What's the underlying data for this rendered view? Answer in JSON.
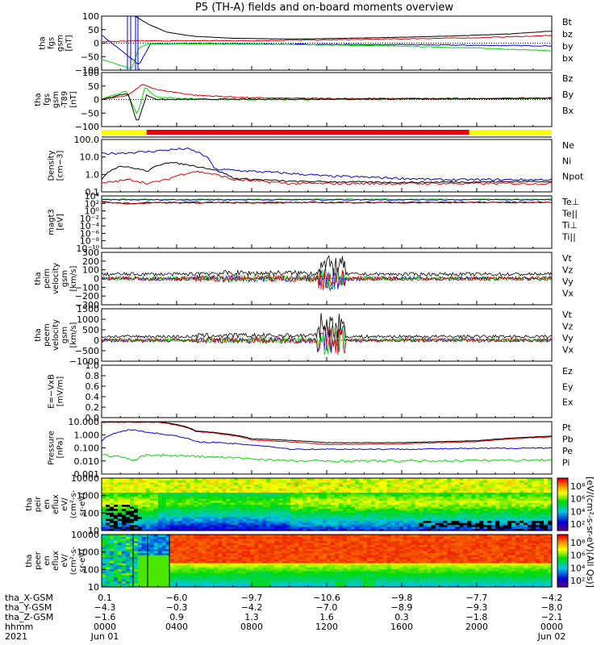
{
  "title": "P5 (TH-A) fields and on-board moments overview",
  "colors": {
    "black": "#000000",
    "red": "#dd0000",
    "green": "#00dd00",
    "blue": "#0000dd",
    "yellow": "#ffff00",
    "bar_red": "#ee0000"
  },
  "chart_data": [
    {
      "id": "p1",
      "type": "line",
      "ylabel": [
        "tha",
        "fgs",
        "gsm",
        "[nT]"
      ],
      "yticks": [
        "100",
        "50",
        "0",
        "−50",
        "−100"
      ],
      "ylim": [
        -100,
        100
      ],
      "legend": [
        {
          "name": "Bt",
          "color": "black"
        },
        {
          "name": "bz",
          "color": "red"
        },
        {
          "name": "by",
          "color": "green"
        },
        {
          "name": "bx",
          "color": "blue"
        }
      ],
      "series": {
        "Bt": [
          [
            0.0,
            220
          ],
          [
            1.9,
            95
          ],
          [
            2.5,
            70
          ],
          [
            3.5,
            40
          ],
          [
            5,
            25
          ],
          [
            7,
            18
          ],
          [
            10,
            15
          ],
          [
            13,
            18
          ],
          [
            16,
            22
          ],
          [
            19,
            27
          ],
          [
            22,
            35
          ],
          [
            24,
            45
          ]
        ],
        "bz": [
          [
            0.0,
            5
          ],
          [
            2,
            8
          ],
          [
            5,
            9
          ],
          [
            8,
            9
          ],
          [
            12,
            12
          ],
          [
            16,
            16
          ],
          [
            20,
            20
          ],
          [
            24,
            28
          ]
        ],
        "by": [
          [
            0.0,
            -60
          ],
          [
            1.6,
            -95
          ],
          [
            2.0,
            -15
          ],
          [
            2.5,
            -3
          ],
          [
            5,
            -3
          ],
          [
            10,
            -5
          ],
          [
            15,
            -10
          ],
          [
            20,
            -18
          ],
          [
            24,
            -28
          ]
        ],
        "bx": [
          [
            0.0,
            30
          ],
          [
            2.0,
            -80
          ],
          [
            2.6,
            -3
          ],
          [
            5,
            -1
          ],
          [
            10,
            -4
          ],
          [
            16,
            -6
          ],
          [
            24,
            -10
          ]
        ]
      }
    },
    {
      "id": "p2",
      "type": "line",
      "ylabel": [
        "tha",
        "fgs",
        "gsm",
        "-T89",
        "[nT]"
      ],
      "yticks": [
        "100",
        "50",
        "0",
        "−50",
        "−100"
      ],
      "ylim": [
        -125,
        125
      ],
      "legend": [
        {
          "name": "Bz",
          "color": "red"
        },
        {
          "name": "By",
          "color": "green"
        },
        {
          "name": "Bx",
          "color": "blue"
        }
      ],
      "series": {
        "red": [
          [
            0,
            0
          ],
          [
            1.4,
            20
          ],
          [
            2.2,
            70
          ],
          [
            3,
            45
          ],
          [
            5,
            20
          ],
          [
            8,
            8
          ],
          [
            12,
            5
          ],
          [
            16,
            5
          ],
          [
            20,
            5
          ],
          [
            24,
            8
          ]
        ],
        "green": [
          [
            0,
            0
          ],
          [
            1.3,
            40
          ],
          [
            1.9,
            -70
          ],
          [
            2.3,
            55
          ],
          [
            3,
            10
          ],
          [
            6,
            0
          ],
          [
            12,
            0
          ],
          [
            24,
            5
          ]
        ],
        "black": [
          [
            0,
            0
          ],
          [
            1.4,
            30
          ],
          [
            1.9,
            -110
          ],
          [
            2.4,
            20
          ],
          [
            3,
            0
          ],
          [
            8,
            2
          ],
          [
            16,
            3
          ],
          [
            24,
            5
          ]
        ]
      }
    },
    {
      "id": "bar",
      "type": "bar",
      "segments": [
        [
          0,
          2.4,
          "yellow"
        ],
        [
          2.4,
          19.6,
          "bar_red"
        ],
        [
          19.6,
          24,
          "yellow"
        ]
      ]
    },
    {
      "id": "p3",
      "type": "line",
      "ylabel": [
        "Density",
        "[cm−3]"
      ],
      "yticks": [
        "100.0",
        "10.0",
        "1.0",
        "0.1"
      ],
      "ylim": [
        0.1,
        100
      ],
      "log": true,
      "legend": [
        {
          "name": "Ne",
          "color": "red"
        },
        {
          "name": "Ni",
          "color": "black"
        },
        {
          "name": "Npot",
          "color": "blue"
        }
      ],
      "series": {
        "Ne": [
          [
            0,
            0.3
          ],
          [
            1.5,
            0.5
          ],
          [
            2.5,
            0.3
          ],
          [
            3.5,
            0.5
          ],
          [
            5,
            1.5
          ],
          [
            7,
            0.5
          ],
          [
            10,
            0.3
          ],
          [
            16,
            0.3
          ],
          [
            24,
            0.3
          ]
        ],
        "Ni": [
          [
            0,
            0.5
          ],
          [
            1.0,
            3
          ],
          [
            2.5,
            1.5
          ],
          [
            3.5,
            5
          ],
          [
            5,
            3
          ],
          [
            7,
            0.6
          ],
          [
            10,
            0.4
          ],
          [
            16,
            0.35
          ],
          [
            24,
            0.4
          ]
        ],
        "Npot": [
          [
            0,
            15
          ],
          [
            2.5,
            20
          ],
          [
            4.5,
            30
          ],
          [
            6,
            2
          ],
          [
            8,
            1.5
          ],
          [
            12,
            0.8
          ],
          [
            18,
            0.5
          ],
          [
            24,
            0.5
          ]
        ]
      }
    },
    {
      "id": "p4",
      "type": "line",
      "ylabel": [
        "magt3",
        "[eV]"
      ],
      "yticks": [
        "10⁴",
        "10²",
        "10⁰",
        "10⁻²",
        "10⁻⁴",
        "10⁻⁶",
        "10⁻⁸",
        "10⁻¹⁰"
      ],
      "ylim": [
        -10.5,
        4.5
      ],
      "log": true,
      "legend": [
        {
          "name": "Te⊥",
          "color": "red"
        },
        {
          "name": "Te||",
          "color": "black"
        },
        {
          "name": "Ti⊥",
          "color": "green"
        },
        {
          "name": "Ti||",
          "color": "green"
        }
      ],
      "series": {
        "Ti": [
          [
            0,
            3.5
          ],
          [
            24,
            3.5
          ]
        ],
        "Te": [
          [
            0,
            3.0
          ],
          [
            1.5,
            2.5
          ],
          [
            2.5,
            2.8
          ],
          [
            24,
            2.9
          ]
        ]
      }
    },
    {
      "id": "p5",
      "type": "line",
      "ylabel": [
        "tha",
        "peim",
        "velocity",
        "gsm",
        "[km/s]"
      ],
      "yticks": [
        "300",
        "200",
        "100",
        "0",
        "−100",
        "−200",
        "−300"
      ],
      "ylim": [
        -300,
        300
      ],
      "legend": [
        {
          "name": "Vt",
          "color": "black"
        },
        {
          "name": "Vz",
          "color": "red"
        },
        {
          "name": "Vy",
          "color": "green"
        },
        {
          "name": "Vx",
          "color": "blue"
        }
      ]
    },
    {
      "id": "p6",
      "type": "line",
      "ylabel": [
        "tha",
        "peem",
        "velocity",
        "gsm",
        "[km/s]"
      ],
      "yticks": [
        "1500",
        "1000",
        "500",
        "0",
        "−500",
        "−1000"
      ],
      "ylim": [
        -1000,
        1500
      ],
      "legend": [
        {
          "name": "Vt",
          "color": "black"
        },
        {
          "name": "Vz",
          "color": "red"
        },
        {
          "name": "Vy",
          "color": "green"
        },
        {
          "name": "Vx",
          "color": "blue"
        }
      ]
    },
    {
      "id": "p7",
      "type": "line",
      "ylabel": [
        "E=−VxB",
        "[mV/m]"
      ],
      "yticks": [
        "1.0",
        "0.8",
        "0.6",
        "0.4",
        "0.2",
        "0.0"
      ],
      "ylim": [
        0,
        1
      ],
      "legend": [
        {
          "name": "Ez",
          "color": "red"
        },
        {
          "name": "Ey",
          "color": "green"
        },
        {
          "name": "Ex",
          "color": "blue"
        }
      ]
    },
    {
      "id": "p8",
      "type": "line",
      "ylabel": [
        "Pressure",
        "[nPa]"
      ],
      "yticks": [
        "10.000",
        "1.000",
        "0.100",
        "0.010",
        "0.001"
      ],
      "ylim": [
        0.001,
        10
      ],
      "log": true,
      "legend": [
        {
          "name": "Pt",
          "color": "black"
        },
        {
          "name": "Pb",
          "color": "red"
        },
        {
          "name": "Pe",
          "color": "green"
        },
        {
          "name": "Pi",
          "color": "blue"
        }
      ],
      "series": {
        "Pt": [
          [
            3,
            10
          ],
          [
            5,
            2
          ],
          [
            8,
            0.5
          ],
          [
            12,
            0.25
          ],
          [
            16,
            0.25
          ],
          [
            20,
            0.35
          ],
          [
            24,
            0.8
          ]
        ],
        "Pb": [
          [
            3,
            9
          ],
          [
            5,
            1.8
          ],
          [
            8,
            0.4
          ],
          [
            12,
            0.18
          ],
          [
            16,
            0.2
          ],
          [
            20,
            0.3
          ],
          [
            24,
            0.7
          ]
        ],
        "Pe": [
          [
            0,
            0.03
          ],
          [
            1.8,
            0.01
          ],
          [
            2.4,
            0.03
          ],
          [
            6,
            0.02
          ],
          [
            10,
            0.01
          ],
          [
            16,
            0.01
          ],
          [
            24,
            0.012
          ]
        ],
        "Pi": [
          [
            0,
            0.3
          ],
          [
            1.5,
            2.5
          ],
          [
            2.5,
            1.5
          ],
          [
            5,
            0.3
          ],
          [
            10,
            0.08
          ],
          [
            16,
            0.08
          ],
          [
            24,
            0.1
          ]
        ]
      }
    },
    {
      "id": "p9",
      "type": "heatmap",
      "ylabel": [
        "tha",
        "peir",
        "en",
        "eflux",
        "eV/",
        "(cm²-s-",
        "sr-eV)"
      ],
      "yticks": [
        "10000",
        "1000",
        "100",
        "10"
      ],
      "ylim": [
        1,
        4.3
      ],
      "log": true,
      "colorbar": {
        "ticks": [
          "10⁸",
          "10⁶",
          "10⁴",
          "10²"
        ],
        "label": "[eV/(cm²-s-sr-eV)(All Qs)]"
      }
    },
    {
      "id": "p10",
      "type": "heatmap",
      "ylabel": [
        "tha",
        "peer",
        "en",
        "eflux",
        "eV/",
        "(cm²-s-",
        "sr-eV)"
      ],
      "yticks": [
        "10000",
        "1000",
        "100",
        "10"
      ],
      "ylim": [
        0.8,
        4.3
      ],
      "log": true,
      "colorbar": {
        "ticks": [
          "10⁸",
          "10⁶",
          "10⁴",
          "10²"
        ],
        "label": "[eV/(cm²-s-sr-eV)]"
      }
    }
  ],
  "footer": {
    "rows": [
      {
        "label": "tha_X-GSM",
        "values": [
          "0.1",
          "−6.0",
          "−9.7",
          "−10.6",
          "−9.8",
          "−7.7",
          "−4.2"
        ]
      },
      {
        "label": "tha_Y-GSM",
        "values": [
          "−4.3",
          "−0.3",
          "−4.2",
          "−7.0",
          "−8.9",
          "−9.3",
          "−8.0"
        ]
      },
      {
        "label": "tha_Z-GSM",
        "values": [
          "−1.6",
          "0.9",
          "1.3",
          "1.6",
          "0.3",
          "−1.8",
          "−2.1"
        ]
      },
      {
        "label": "hhmm",
        "values": [
          "0000",
          "0400",
          "0800",
          "1200",
          "1600",
          "2000",
          "0000"
        ]
      },
      {
        "label": "2021",
        "values": [
          "Jun 01",
          "",
          "",
          "",
          "",
          "",
          "Jun 02"
        ]
      }
    ]
  }
}
